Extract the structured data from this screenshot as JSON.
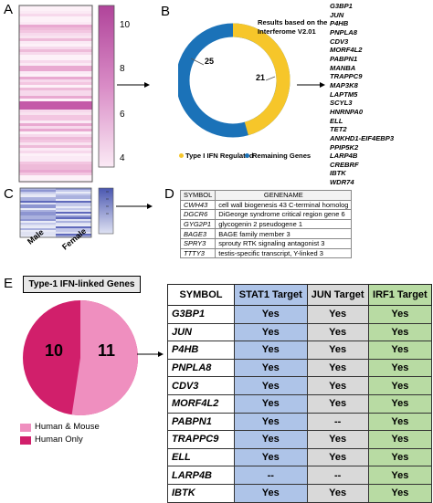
{
  "panels": {
    "a": "A",
    "b": "B",
    "c": "C",
    "d": "D",
    "e": "E"
  },
  "panel_a": {
    "colorbar_ticks": [
      "10",
      "8",
      "6",
      "4"
    ],
    "colorbar_color_high": "#b0449a",
    "colorbar_color_low": "#fbeaf5"
  },
  "panel_b": {
    "title": "Results based on the Interferome V2.01",
    "ifn_regulated_count": "21",
    "remaining_count": "25",
    "legend": [
      "Type I IFN Regulated",
      "Remaining Genes"
    ],
    "colors": {
      "ifn": "#f6c62a",
      "remaining": "#1b72b8"
    },
    "genes": [
      "G3BP1",
      "JUN",
      "P4HB",
      "PNPLA8",
      "CDV3",
      "MORF4L2",
      "PABPN1",
      "MANBA",
      "TRAPPC9",
      "MAP3K8",
      "LAPTM5",
      "SCYL3",
      "HNRNPA0",
      "ELL",
      "TET2",
      "ANKHD1-EIF4EBP3",
      "PPIP5K2",
      "LARP4B",
      "CREBRF",
      "IBTK",
      "WDR74"
    ]
  },
  "panel_c": {
    "x_labels": [
      "Male",
      "Female"
    ],
    "colorbar_color": "#4a57b0"
  },
  "panel_d": {
    "headers": [
      "SYMBOL",
      "GENENAME"
    ],
    "rows": [
      [
        "CWH43",
        "cell wall biogenesis 43 C-terminal homolog"
      ],
      [
        "DGCR6",
        "DiGeorge syndrome critical region gene 6"
      ],
      [
        "GYG2P1",
        "glycogenin 2 pseudogene 1"
      ],
      [
        "BAGE3",
        "BAGE family member 3"
      ],
      [
        "SPRY3",
        "sprouty RTK signaling antagonist 3"
      ],
      [
        "TTTY3",
        "testis-specific transcript, Y-linked 3"
      ]
    ]
  },
  "panel_e": {
    "box_title": "Type-1 IFN-linked Genes",
    "human_only_count": "10",
    "human_mouse_count": "11",
    "legend": [
      "Human & Mouse",
      "Human Only"
    ],
    "colors": {
      "human_mouse": "#ef8fbf",
      "human_only": "#d11f6b",
      "stat1": "#aec4e8",
      "jun": "#d9d9d9",
      "irf1": "#b8dba3"
    },
    "table_headers": [
      "SYMBOL",
      "STAT1 Target",
      "JUN Target",
      "IRF1 Target"
    ],
    "table_rows": [
      [
        "G3BP1",
        "Yes",
        "Yes",
        "Yes"
      ],
      [
        "JUN",
        "Yes",
        "Yes",
        "Yes"
      ],
      [
        "P4HB",
        "Yes",
        "Yes",
        "Yes"
      ],
      [
        "PNPLA8",
        "Yes",
        "Yes",
        "Yes"
      ],
      [
        "CDV3",
        "Yes",
        "Yes",
        "Yes"
      ],
      [
        "MORF4L2",
        "Yes",
        "Yes",
        "Yes"
      ],
      [
        "PABPN1",
        "Yes",
        "--",
        "Yes"
      ],
      [
        "TRAPPC9",
        "Yes",
        "Yes",
        "Yes"
      ],
      [
        "ELL",
        "Yes",
        "Yes",
        "Yes"
      ],
      [
        "LARP4B",
        "--",
        "--",
        "Yes"
      ],
      [
        "IBTK",
        "Yes",
        "Yes",
        "Yes"
      ]
    ]
  }
}
